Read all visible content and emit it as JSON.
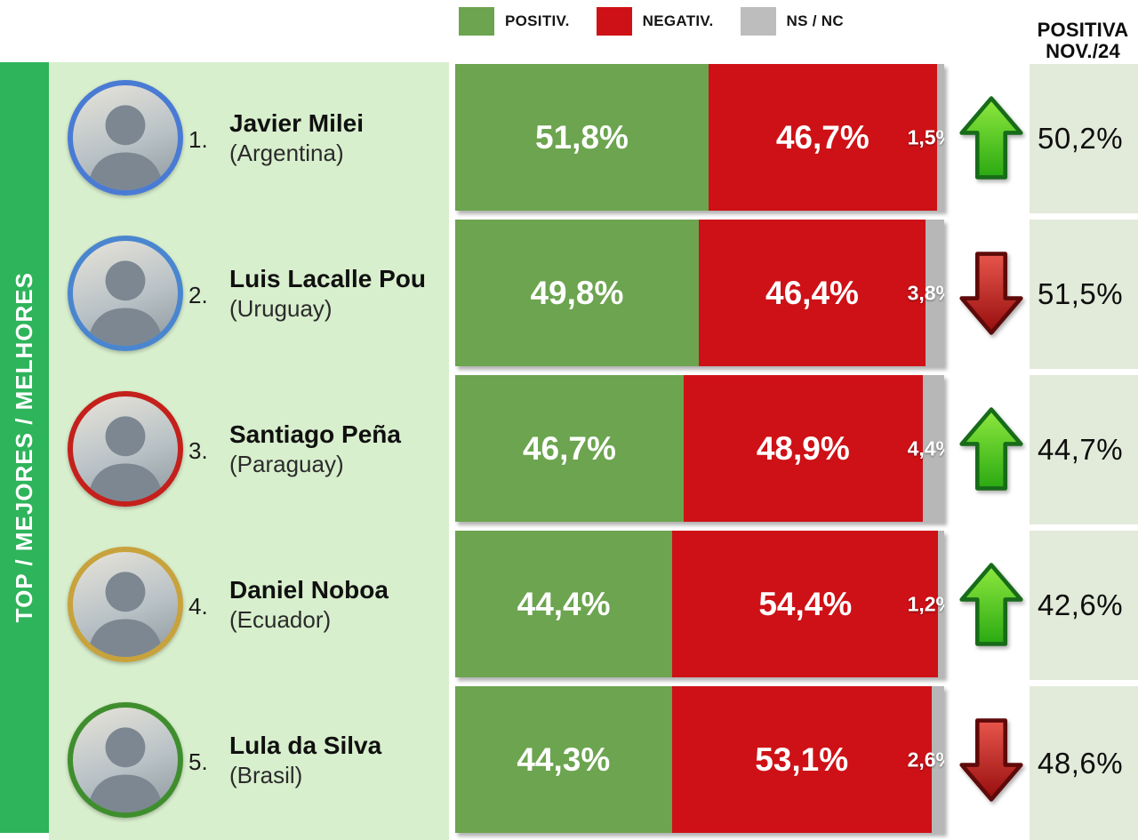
{
  "legend": {
    "items": [
      {
        "label": "POSITIV.",
        "color": "#6ca44f"
      },
      {
        "label": "NEGATIV.",
        "color": "#ce1116"
      },
      {
        "label": "NS / NC",
        "color": "#bdbdbd"
      }
    ]
  },
  "right_column": {
    "title_line1": "POSITIVA",
    "title_line2": "NOV./24"
  },
  "sidebar": {
    "label": "TOP / MEJORES / MELHORES",
    "color": "#2eb45b"
  },
  "colors": {
    "positive": "#6ca44f",
    "negative": "#ce1116",
    "nsnc": "#b7b7b7",
    "names_panel": "#d8efcd",
    "right_panel": "#e2ead9"
  },
  "chart_data": {
    "type": "bar",
    "stacked": true,
    "orientation": "horizontal",
    "unit": "percent",
    "xlim": [
      0,
      100
    ],
    "series_names": [
      "POSITIV.",
      "NEGATIV.",
      "NS / NC"
    ],
    "rows": [
      {
        "rank": "1.",
        "name": "Javier Milei",
        "country": "(Argentina)",
        "positive": 51.8,
        "negative": 46.7,
        "nsnc": 1.5,
        "positive_label": "51,8%",
        "negative_label": "46,7%",
        "nsnc_label": "1,5%",
        "trend": "up",
        "positiva_nov24": "50,2%",
        "photo_ring": "#4a7bd4"
      },
      {
        "rank": "2.",
        "name": "Luis Lacalle Pou",
        "country": "(Uruguay)",
        "positive": 49.8,
        "negative": 46.4,
        "nsnc": 3.8,
        "positive_label": "49,8%",
        "negative_label": "46,4%",
        "nsnc_label": "3,8%",
        "trend": "down",
        "positiva_nov24": "51,5%",
        "photo_ring": "#4a86cf"
      },
      {
        "rank": "3.",
        "name": "Santiago Peña",
        "country": "(Paraguay)",
        "positive": 46.7,
        "negative": 48.9,
        "nsnc": 4.4,
        "positive_label": "46,7%",
        "negative_label": "48,9%",
        "nsnc_label": "4,4%",
        "trend": "up",
        "positiva_nov24": "44,7%",
        "photo_ring": "#c4201c"
      },
      {
        "rank": "4.",
        "name": "Daniel Noboa",
        "country": "(Ecuador)",
        "positive": 44.4,
        "negative": 54.4,
        "nsnc": 1.2,
        "positive_label": "44,4%",
        "negative_label": "54,4%",
        "nsnc_label": "1,2%",
        "trend": "up",
        "positiva_nov24": "42,6%",
        "photo_ring": "#c8a23c"
      },
      {
        "rank": "5.",
        "name": "Lula da Silva",
        "country": "(Brasil)",
        "positive": 44.3,
        "negative": 53.1,
        "nsnc": 2.6,
        "positive_label": "44,3%",
        "negative_label": "53,1%",
        "nsnc_label": "2,6%",
        "trend": "down",
        "positiva_nov24": "48,6%",
        "photo_ring": "#3f8e2e"
      }
    ]
  }
}
